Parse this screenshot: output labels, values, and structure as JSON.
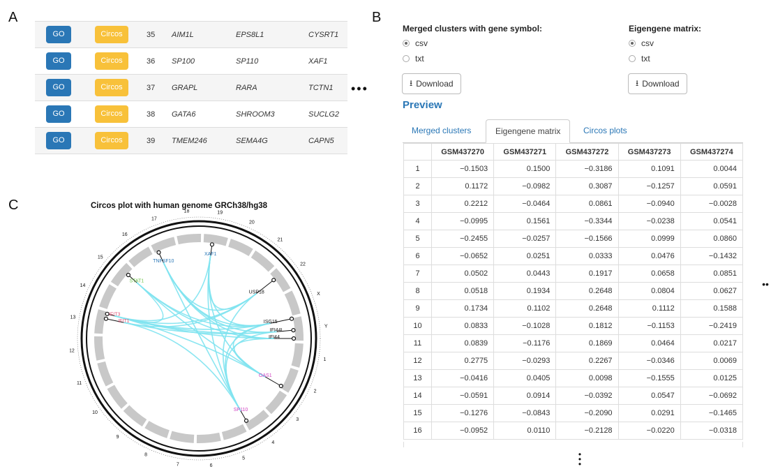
{
  "labels": {
    "a": "A",
    "b": "B",
    "c": "C"
  },
  "panel_a": {
    "go_label": "GO",
    "circos_label": "Circos",
    "rows": [
      {
        "num": "35",
        "g1": "AIM1L",
        "g2": "EPS8L1",
        "g3": "CYSRT1"
      },
      {
        "num": "36",
        "g1": "SP100",
        "g2": "SP110",
        "g3": "XAF1"
      },
      {
        "num": "37",
        "g1": "GRAPL",
        "g2": "RARA",
        "g3": "TCTN1"
      },
      {
        "num": "38",
        "g1": "GATA6",
        "g2": "SHROOM3",
        "g3": "SUCLG2"
      },
      {
        "num": "39",
        "g1": "TMEM246",
        "g2": "SEMA4G",
        "g3": "CAPN5"
      }
    ],
    "ellipsis": "•••"
  },
  "panel_b": {
    "merged_title": "Merged clusters with gene symbol:",
    "eigen_title": "Eigengene matrix:",
    "opt_csv": "csv",
    "opt_txt": "txt",
    "download_label": "Download",
    "preview_title": "Preview",
    "tabs": [
      "Merged clusters",
      "Eigengene matrix",
      "Circos plots"
    ],
    "active_tab": 1,
    "side_ellipsis": "••",
    "bottom_ellipsis": "•\n•\n•"
  },
  "eigen_table": {
    "columns": [
      "",
      "GSM437270",
      "GSM437271",
      "GSM437272",
      "GSM437273",
      "GSM437274"
    ],
    "rows": [
      [
        "1",
        "−0.1503",
        "0.1500",
        "−0.3186",
        "0.1091",
        "0.0044"
      ],
      [
        "2",
        "0.1172",
        "−0.0982",
        "0.3087",
        "−0.1257",
        "0.0591"
      ],
      [
        "3",
        "0.2212",
        "−0.0464",
        "0.0861",
        "−0.0940",
        "−0.0028"
      ],
      [
        "4",
        "−0.0995",
        "0.1561",
        "−0.3344",
        "−0.0238",
        "0.0541"
      ],
      [
        "5",
        "−0.2455",
        "−0.0257",
        "−0.1566",
        "0.0999",
        "0.0860"
      ],
      [
        "6",
        "−0.0652",
        "0.0251",
        "0.0333",
        "0.0476",
        "−0.1432"
      ],
      [
        "7",
        "0.0502",
        "0.0443",
        "0.1917",
        "0.0658",
        "0.0851"
      ],
      [
        "8",
        "0.0518",
        "0.1934",
        "0.2648",
        "0.0804",
        "0.0627"
      ],
      [
        "9",
        "0.1734",
        "0.1102",
        "0.2648",
        "0.1112",
        "0.1588"
      ],
      [
        "10",
        "0.0833",
        "−0.1028",
        "0.1812",
        "−0.1153",
        "−0.2419"
      ],
      [
        "11",
        "0.0839",
        "−0.1176",
        "0.1869",
        "0.0464",
        "0.0217"
      ],
      [
        "12",
        "0.2775",
        "−0.0293",
        "0.2267",
        "−0.0346",
        "0.0069"
      ],
      [
        "13",
        "−0.0416",
        "0.0405",
        "0.0098",
        "−0.1555",
        "0.0125"
      ],
      [
        "14",
        "−0.0591",
        "0.0914",
        "−0.0392",
        "0.0547",
        "−0.0692"
      ],
      [
        "15",
        "−0.1276",
        "−0.0843",
        "−0.2090",
        "0.0291",
        "−0.1465"
      ],
      [
        "16",
        "−0.0952",
        "0.0110",
        "−0.2128",
        "−0.0220",
        "−0.0318"
      ]
    ]
  },
  "panel_c": {
    "title": "Circos plot with human genome GRCh38/hg38",
    "chromosomes": [
      "1",
      "2",
      "3",
      "4",
      "5",
      "6",
      "7",
      "8",
      "9",
      "10",
      "11",
      "12",
      "13",
      "14",
      "15",
      "16",
      "17",
      "18",
      "19",
      "20",
      "21",
      "22",
      "X",
      "Y"
    ],
    "genes": [
      "XAF1",
      "TNFSF10",
      "STAT1",
      "USP18",
      "IFIT3",
      "IFIT1",
      "ISG15",
      "IFI44L",
      "IFI44",
      "OAS1",
      "SP110"
    ],
    "colors": {
      "link": "#7fe3ef",
      "segment": "#c8c8c8",
      "accent_go": "#2a77b6",
      "accent_circos": "#f8c13a",
      "link_text": "#2a77b6"
    }
  }
}
